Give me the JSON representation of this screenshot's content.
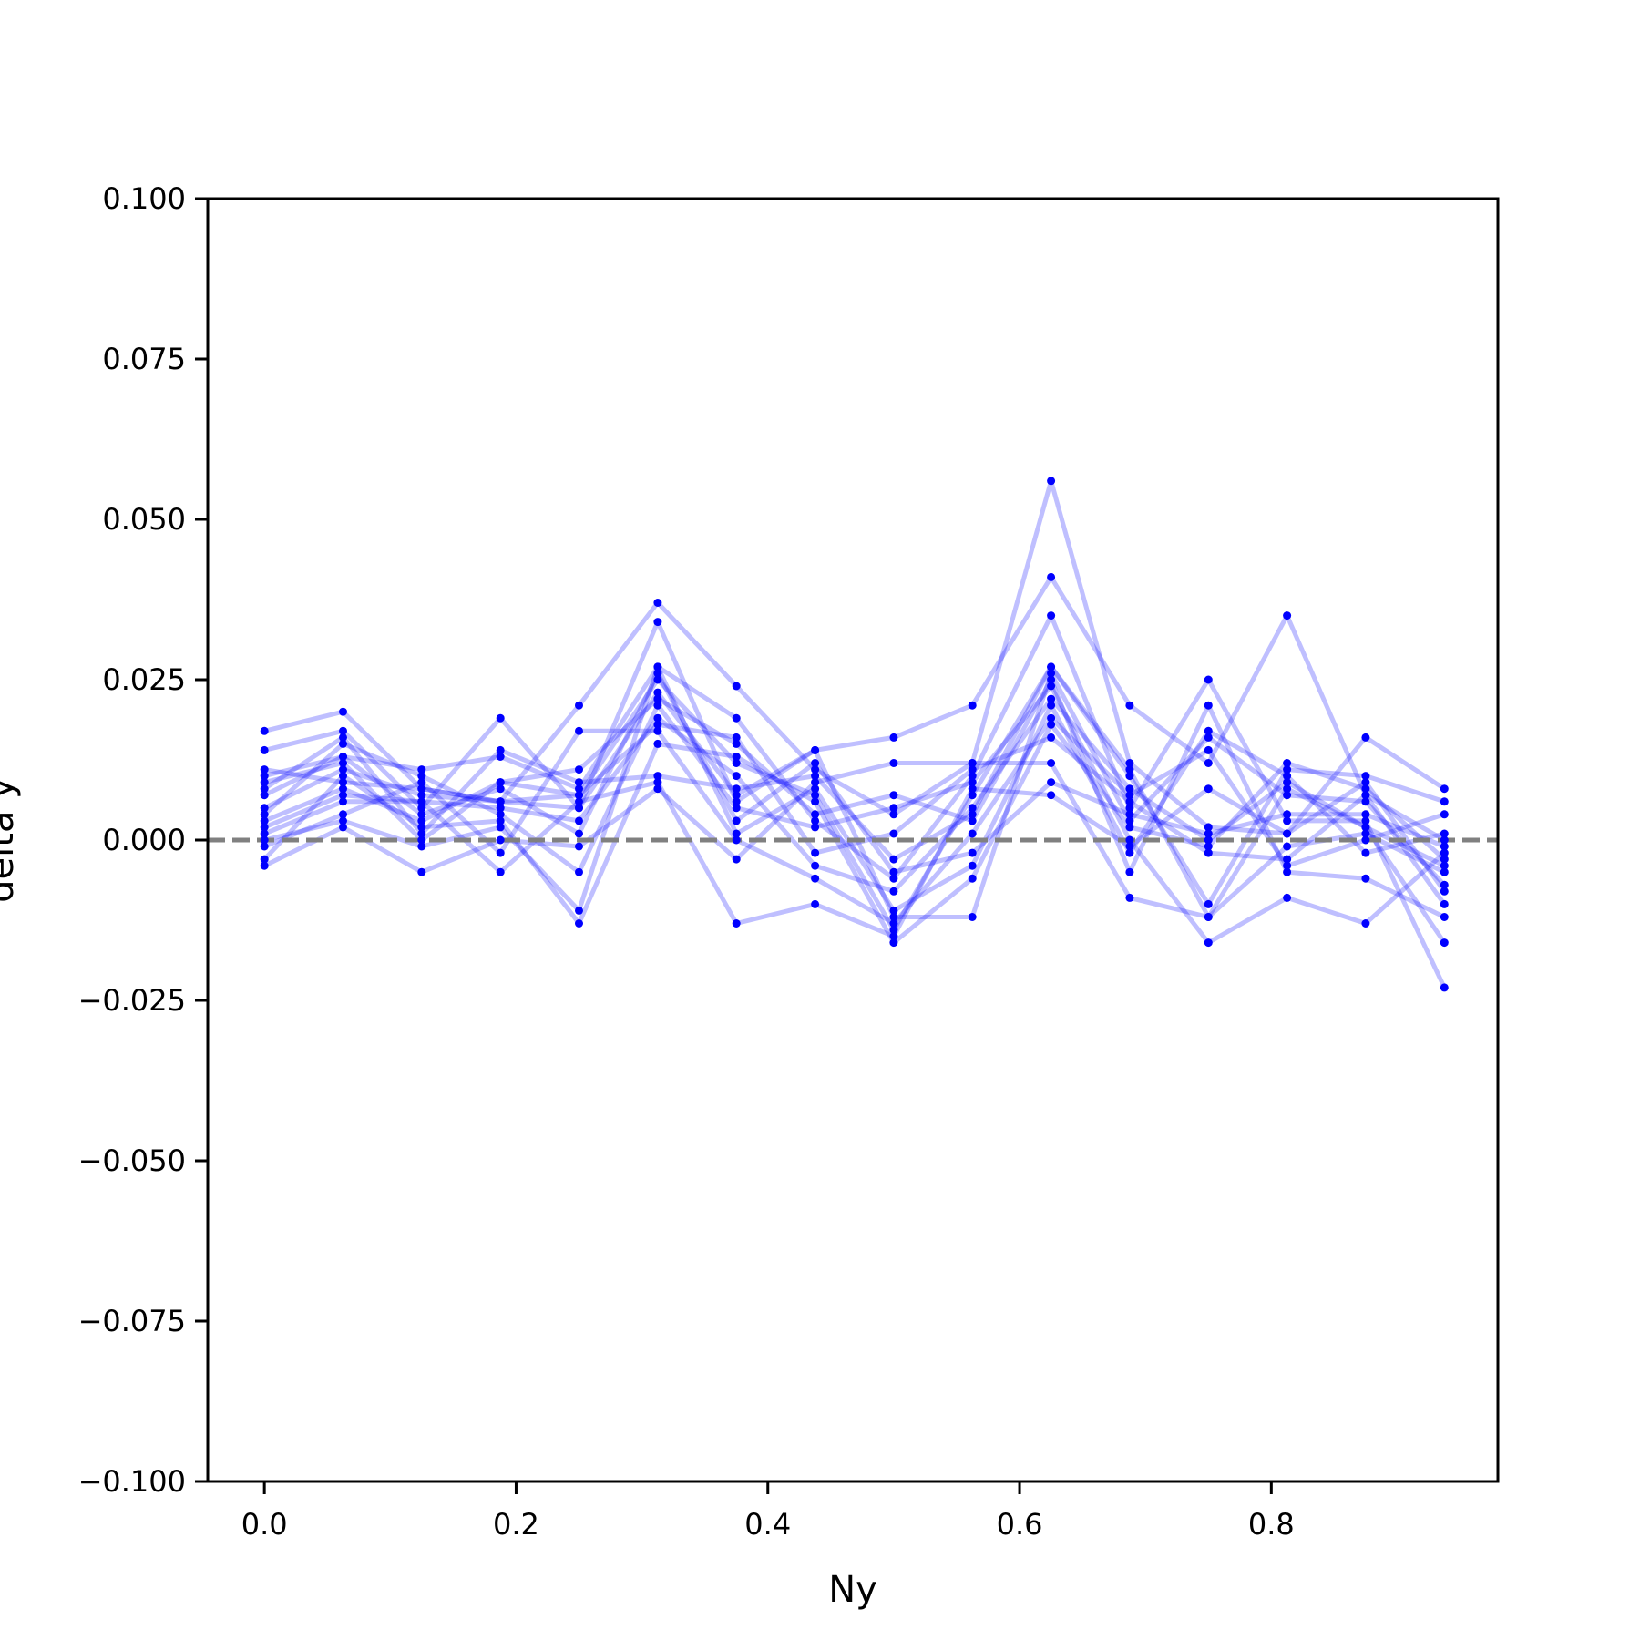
{
  "chart_data": {
    "type": "line",
    "xlabel": "Ny",
    "ylabel": "delta y",
    "xlim": [
      -0.045,
      0.98
    ],
    "ylim": [
      -0.1,
      0.1
    ],
    "xticks": [
      0.0,
      0.2,
      0.4,
      0.6,
      0.8
    ],
    "xtick_labels": [
      "0.0",
      "0.2",
      "0.4",
      "0.6",
      "0.8"
    ],
    "yticks": [
      -0.1,
      -0.075,
      -0.05,
      -0.025,
      0.0,
      0.025,
      0.05,
      0.075,
      0.1
    ],
    "ytick_labels": [
      "−0.100",
      "−0.075",
      "−0.050",
      "−0.025",
      "0.000",
      "0.025",
      "0.050",
      "0.075",
      "0.100"
    ],
    "reference_line": {
      "y": 0.0,
      "style": "dashed",
      "color": "#808080"
    },
    "line_color": "#0000ff",
    "line_alpha": 0.25,
    "marker": "dot",
    "grid": false,
    "x": [
      0.0,
      0.0625,
      0.125,
      0.1875,
      0.25,
      0.3125,
      0.375,
      0.4375,
      0.5,
      0.5625,
      0.625,
      0.6875,
      0.75,
      0.8125,
      0.875,
      0.9375
    ],
    "series": [
      {
        "values": [
          0.017,
          0.02,
          0.008,
          0.006,
          0.021,
          0.037,
          0.024,
          0.011,
          0.004,
          0.012,
          0.056,
          0.012,
          0.002,
          0.001,
          0.016,
          0.008
        ]
      },
      {
        "values": [
          0.014,
          0.017,
          0.005,
          0.019,
          0.005,
          0.034,
          0.006,
          0.014,
          0.016,
          0.021,
          0.041,
          0.021,
          0.012,
          0.035,
          0.007,
          0.0
        ]
      },
      {
        "values": [
          0.01,
          0.013,
          0.011,
          0.013,
          0.008,
          0.027,
          0.019,
          0.003,
          -0.006,
          0.01,
          0.035,
          0.005,
          0.025,
          0.003,
          0.003,
          -0.023
        ]
      },
      {
        "values": [
          0.009,
          0.012,
          0.0,
          0.009,
          0.007,
          0.025,
          0.012,
          0.007,
          -0.014,
          0.007,
          0.027,
          0.01,
          -0.01,
          0.011,
          0.01,
          0.006
        ]
      },
      {
        "values": [
          0.005,
          0.011,
          0.007,
          0.006,
          0.005,
          0.023,
          0.007,
          0.014,
          -0.012,
          -0.012,
          0.026,
          0.003,
          0.016,
          0.007,
          0.006,
          -0.007
        ]
      },
      {
        "values": [
          0.003,
          0.008,
          0.003,
          0.009,
          0.011,
          0.022,
          0.015,
          0.004,
          0.007,
          0.003,
          0.025,
          -0.005,
          0.021,
          -0.005,
          -0.006,
          -0.012
        ]
      },
      {
        "values": [
          0.001,
          0.006,
          0.006,
          0.005,
          0.003,
          0.019,
          0.01,
          -0.004,
          -0.008,
          0.005,
          0.022,
          0.008,
          0.0,
          0.009,
          0.002,
          -0.016
        ]
      },
      {
        "values": [
          -0.001,
          0.004,
          0.009,
          -0.002,
          0.017,
          0.017,
          0.0,
          -0.006,
          -0.013,
          0.001,
          0.019,
          0.007,
          0.014,
          -0.004,
          0.0,
          0.004
        ]
      },
      {
        "values": [
          -0.003,
          0.01,
          0.002,
          0.003,
          -0.013,
          0.015,
          0.013,
          0.006,
          -0.016,
          -0.006,
          0.018,
          0.002,
          -0.001,
          0.012,
          0.008,
          -0.003
        ]
      },
      {
        "values": [
          -0.004,
          0.002,
          -0.005,
          0.0,
          -0.001,
          0.008,
          -0.003,
          0.009,
          0.012,
          0.012,
          0.012,
          -0.009,
          -0.012,
          -0.001,
          0.001,
          -0.005
        ]
      },
      {
        "values": [
          0.007,
          0.013,
          0.004,
          0.008,
          0.001,
          0.026,
          0.003,
          0.012,
          -0.005,
          -0.002,
          0.009,
          0.004,
          0.001,
          0.004,
          0.004,
          -0.001
        ]
      },
      {
        "values": [
          0.002,
          0.007,
          0.006,
          -0.005,
          0.006,
          0.009,
          -0.013,
          -0.01,
          -0.015,
          0.008,
          0.007,
          -0.001,
          0.008,
          0.001,
          0.009,
          -0.008
        ]
      },
      {
        "values": [
          0.004,
          0.015,
          0.01,
          0.004,
          -0.005,
          0.021,
          0.005,
          0.002,
          0.005,
          0.009,
          0.024,
          0.0,
          -0.016,
          -0.009,
          -0.013,
          -0.002
        ]
      },
      {
        "values": [
          0.008,
          0.016,
          0.001,
          0.014,
          0.009,
          0.01,
          0.008,
          0.01,
          -0.003,
          0.004,
          0.027,
          0.011,
          -0.012,
          0.008,
          0.002,
          -0.004
        ]
      },
      {
        "values": [
          0.0,
          0.003,
          -0.001,
          0.002,
          -0.011,
          0.027,
          0.001,
          0.008,
          -0.011,
          -0.004,
          0.021,
          -0.002,
          0.017,
          0.01,
          -0.002,
          0.001
        ]
      },
      {
        "values": [
          0.011,
          0.009,
          0.008,
          0.006,
          0.007,
          0.018,
          0.016,
          -0.002,
          0.001,
          0.011,
          0.016,
          0.006,
          -0.002,
          -0.003,
          0.007,
          -0.01
        ]
      }
    ]
  }
}
